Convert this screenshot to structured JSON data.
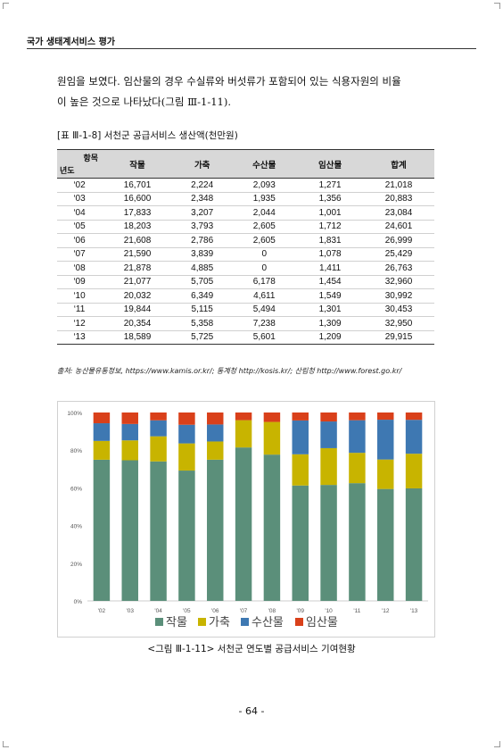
{
  "header": {
    "running_title": "국가 생태계서비스 평가"
  },
  "body": {
    "lines": [
      "원임을 보였다. 임산물의 경우 수실류와 버섯류가 포함되어 있는 식용자원의 비율",
      "이 높은 것으로 나타났다(그림 Ⅲ-1-11)."
    ]
  },
  "table": {
    "caption": "[표 Ⅲ-1-8] 서천군 공급서비스 생산액(천만원)",
    "corner_top": "항목",
    "corner_bottom": "년도",
    "columns": [
      "작물",
      "가축",
      "수산물",
      "임산물",
      "합계"
    ],
    "rows": [
      {
        "year": "‘02",
        "values": [
          "16,701",
          "2,224",
          "2,093",
          "1,271",
          "21,018"
        ]
      },
      {
        "year": "‘03",
        "values": [
          "16,600",
          "2,348",
          "1,935",
          "1,356",
          "20,883"
        ]
      },
      {
        "year": "‘04",
        "values": [
          "17,833",
          "3,207",
          "2,044",
          "1,001",
          "23,084"
        ]
      },
      {
        "year": "‘05",
        "values": [
          "18,203",
          "3,793",
          "2,605",
          "1,712",
          "24,601"
        ]
      },
      {
        "year": "‘06",
        "values": [
          "21,608",
          "2,786",
          "2,605",
          "1,831",
          "26,999"
        ]
      },
      {
        "year": "‘07",
        "values": [
          "21,590",
          "3,839",
          "0",
          "1,078",
          "25,429"
        ]
      },
      {
        "year": "‘08",
        "values": [
          "21,878",
          "4,885",
          "0",
          "1,411",
          "26,763"
        ]
      },
      {
        "year": "‘09",
        "values": [
          "21,077",
          "5,705",
          "6,178",
          "1,454",
          "32,960"
        ]
      },
      {
        "year": "‘10",
        "values": [
          "20,032",
          "6,349",
          "4,611",
          "1,549",
          "30,992"
        ]
      },
      {
        "year": "‘11",
        "values": [
          "19,844",
          "5,115",
          "5,494",
          "1,301",
          "30,453"
        ]
      },
      {
        "year": "‘12",
        "values": [
          "20,354",
          "5,358",
          "7,238",
          "1,309",
          "32,950"
        ]
      },
      {
        "year": "‘13",
        "values": [
          "18,589",
          "5,725",
          "5,601",
          "1,209",
          "29,915"
        ]
      }
    ],
    "source": "출처: 농산물유통정보, https://www.kamis.or.kr/; 통계청 http://kosis.kr/; 산림청 http://www.forest.go.kr/"
  },
  "chart_data": {
    "type": "bar",
    "stacked": "percent",
    "categories": [
      "'02",
      "'03",
      "'04",
      "'05",
      "'06",
      "'07",
      "'08",
      "'09",
      "'10",
      "'11",
      "'12",
      "'13"
    ],
    "series": [
      {
        "name": "작물",
        "color": "#5b8f7a",
        "values": [
          16701,
          16600,
          17833,
          18203,
          21608,
          21590,
          21878,
          21077,
          20032,
          19844,
          20354,
          18589
        ]
      },
      {
        "name": "가축",
        "color": "#c8b400",
        "values": [
          2224,
          2348,
          3207,
          3793,
          2786,
          3839,
          4885,
          5705,
          6349,
          5115,
          5358,
          5725
        ]
      },
      {
        "name": "수산물",
        "color": "#3e78b2",
        "values": [
          2093,
          1935,
          2044,
          2605,
          2605,
          0,
          0,
          6178,
          4611,
          5494,
          7238,
          5601
        ]
      },
      {
        "name": "임산물",
        "color": "#d9401a",
        "values": [
          1271,
          1356,
          1001,
          1712,
          1831,
          1078,
          1411,
          1454,
          1549,
          1301,
          1309,
          1209
        ]
      }
    ],
    "yticks": [
      "0%",
      "20%",
      "40%",
      "60%",
      "80%",
      "100%"
    ],
    "ylim": [
      0,
      100
    ],
    "legend": "bottom",
    "grid": false
  },
  "figure": {
    "caption": "<그림 Ⅲ-1-11> 서천군 연도별 공급서비스 기여현황"
  },
  "page": {
    "number": "- 64 -"
  }
}
